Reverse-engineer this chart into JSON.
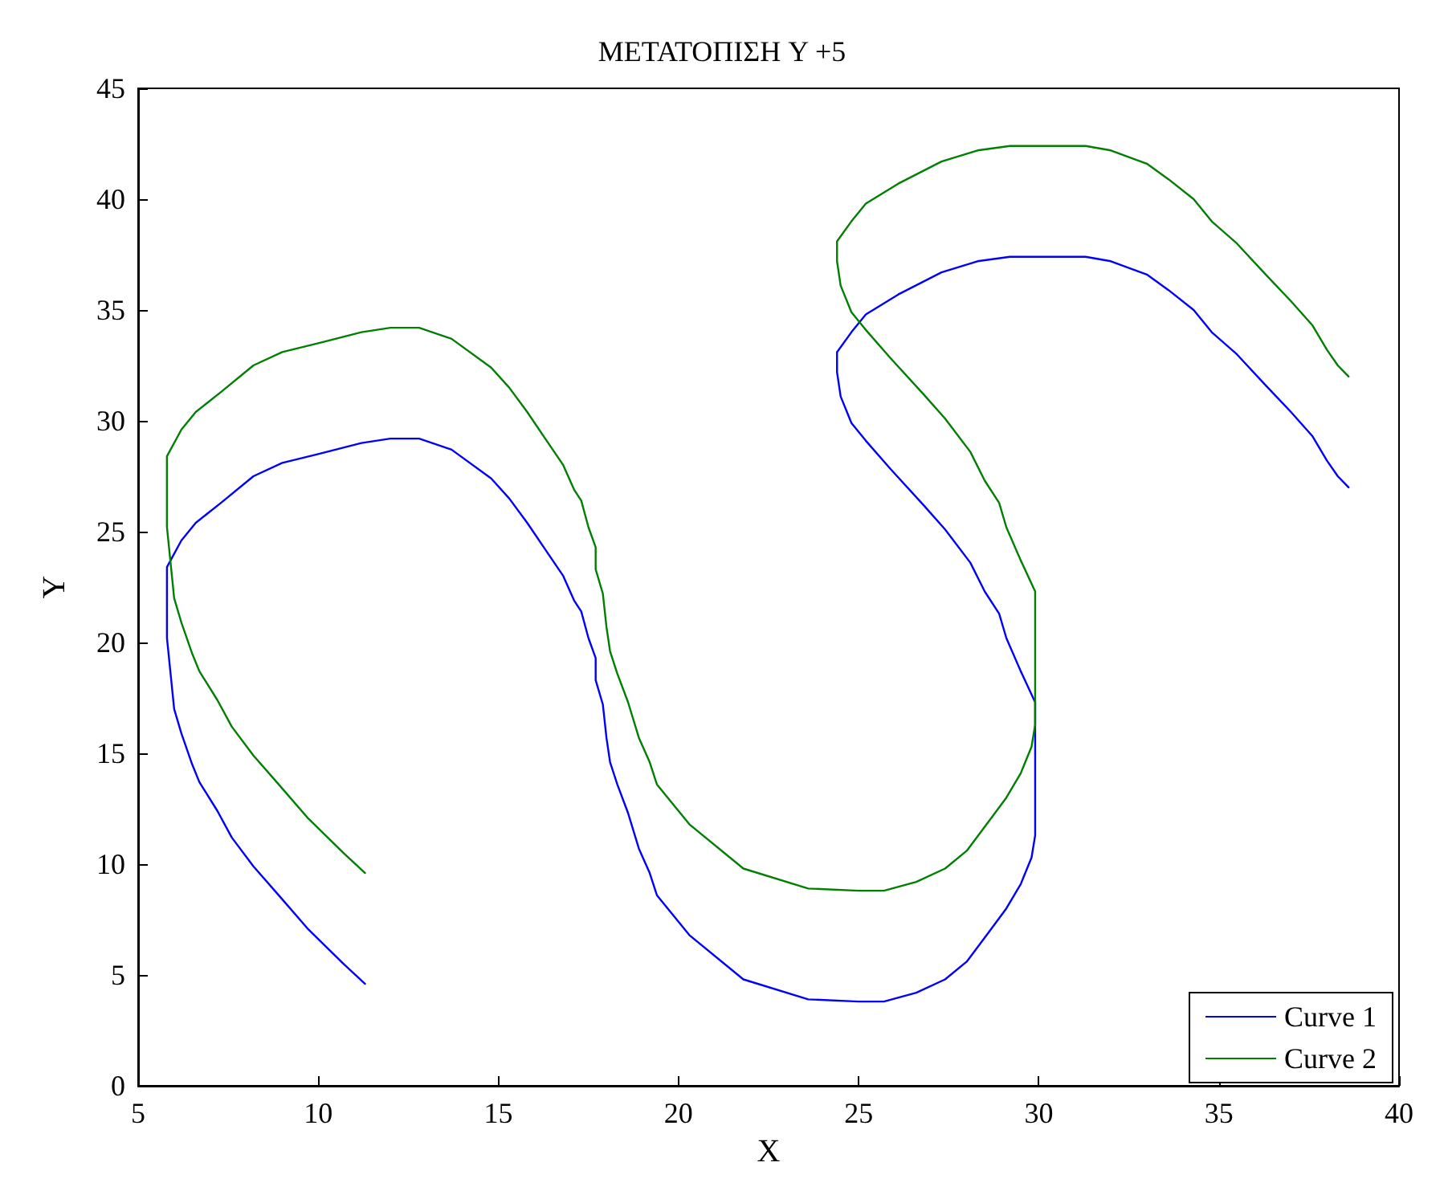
{
  "chart_data": {
    "type": "line",
    "title": "ΜΕΤΑΤΟΠΙΣΗ Y +5",
    "xlabel": "X",
    "ylabel": "Y",
    "xlim": [
      5,
      40
    ],
    "xticks": [
      5,
      10,
      15,
      20,
      25,
      30,
      35,
      40
    ],
    "ylim": [
      0,
      45
    ],
    "yticks": [
      0,
      5,
      10,
      15,
      20,
      25,
      30,
      35,
      40,
      45
    ],
    "grid": false,
    "legend": "bottom right",
    "marker": "none",
    "line_style": "solid",
    "series": [
      {
        "name": "Curve 1",
        "color": "#0000ff",
        "x": [
          11.3,
          10.7,
          9.7,
          8.9,
          8.2,
          7.6,
          7.2,
          6.7,
          6.5,
          6.2,
          6.0,
          5.9,
          5.8,
          5.8,
          5.8,
          6.2,
          6.6,
          7.3,
          8.2,
          9,
          10,
          11.2,
          12,
          12.8,
          13.7,
          14.8,
          15.3,
          15.8,
          16.3,
          16.8,
          17.1,
          17.3,
          17.5,
          17.7,
          17.7,
          17.9,
          18.0,
          18.1,
          18.3,
          18.6,
          18.9,
          19.2,
          19.4,
          20.3,
          21.8,
          23.6,
          25.0,
          25.7,
          26.6,
          27.4,
          28.0,
          28.6,
          29.1,
          29.5,
          29.8,
          29.9,
          29.9,
          29.9,
          29.9,
          29.9,
          29.5,
          29.1,
          28.9,
          28.5,
          28.1,
          27.4,
          26.8,
          25.9,
          25.2,
          24.8,
          24.5,
          24.4,
          24.4,
          24.8,
          25.2,
          26.1,
          27.3,
          28.3,
          29.2,
          31.3,
          32.0,
          33.0,
          33.6,
          34.3,
          34.8,
          35.5,
          36.3,
          37.0,
          37.6,
          38.0,
          38.3,
          38.6
        ],
        "values": [
          4.6,
          5.5,
          7.1,
          8.6,
          9.9,
          11.2,
          12.4,
          13.7,
          14.5,
          15.9,
          17,
          18.6,
          20.2,
          22,
          23.4,
          24.6,
          25.4,
          26.3,
          27.5,
          28.1,
          28.5,
          29,
          29.2,
          29.2,
          28.7,
          27.4,
          26.5,
          25.4,
          24.2,
          23,
          21.9,
          21.4,
          20.2,
          19.3,
          18.3,
          17.2,
          15.7,
          14.6,
          13.6,
          12.3,
          10.7,
          9.6,
          8.6,
          6.8,
          4.8,
          3.9,
          3.8,
          3.8,
          4.2,
          4.8,
          5.6,
          6.9,
          8.0,
          9.1,
          10.3,
          11.3,
          12.4,
          14,
          16,
          17.3,
          18.7,
          20.2,
          21.3,
          22.3,
          23.6,
          25.1,
          26.2,
          27.8,
          29.1,
          29.9,
          31.1,
          32.2,
          33.1,
          34,
          34.8,
          35.7,
          36.7,
          37.2,
          37.4,
          37.4,
          37.2,
          36.6,
          35.9,
          35.0,
          34.0,
          33.0,
          31.6,
          30.4,
          29.3,
          28.2,
          27.5,
          27.0
        ]
      },
      {
        "name": "Curve 2",
        "color": "#008000",
        "x": [
          11.3,
          10.7,
          9.7,
          8.9,
          8.2,
          7.6,
          7.2,
          6.7,
          6.5,
          6.2,
          6.0,
          5.9,
          5.8,
          5.8,
          5.8,
          6.2,
          6.6,
          7.3,
          8.2,
          9,
          10,
          11.2,
          12,
          12.8,
          13.7,
          14.8,
          15.3,
          15.8,
          16.3,
          16.8,
          17.1,
          17.3,
          17.5,
          17.7,
          17.7,
          17.9,
          18.0,
          18.1,
          18.3,
          18.6,
          18.9,
          19.2,
          19.4,
          20.3,
          21.8,
          23.6,
          25.0,
          25.7,
          26.6,
          27.4,
          28.0,
          28.6,
          29.1,
          29.5,
          29.8,
          29.9,
          29.9,
          29.9,
          29.9,
          29.9,
          29.5,
          29.1,
          28.9,
          28.5,
          28.1,
          27.4,
          26.8,
          25.9,
          25.2,
          24.8,
          24.5,
          24.4,
          24.4,
          24.8,
          25.2,
          26.1,
          27.3,
          28.3,
          29.2,
          31.3,
          32.0,
          33.0,
          33.6,
          34.3,
          34.8,
          35.5,
          36.3,
          37.0,
          37.6,
          38.0,
          38.3,
          38.6
        ],
        "values": [
          9.6,
          10.5,
          12.1,
          13.6,
          14.9,
          16.2,
          17.4,
          18.7,
          19.5,
          20.9,
          22,
          23.6,
          25.2,
          27,
          28.4,
          29.6,
          30.4,
          31.3,
          32.5,
          33.1,
          33.5,
          34,
          34.2,
          34.2,
          33.7,
          32.4,
          31.5,
          30.4,
          29.2,
          28,
          26.9,
          26.4,
          25.2,
          24.3,
          23.3,
          22.2,
          20.7,
          19.6,
          18.6,
          17.3,
          15.7,
          14.6,
          13.6,
          11.8,
          9.8,
          8.9,
          8.8,
          8.8,
          9.2,
          9.8,
          10.6,
          11.9,
          13.0,
          14.1,
          15.3,
          16.3,
          17.4,
          19,
          21,
          22.3,
          23.7,
          25.2,
          26.3,
          27.3,
          28.6,
          30.1,
          31.2,
          32.8,
          34.1,
          34.9,
          36.1,
          37.2,
          38.1,
          39,
          39.8,
          40.7,
          41.7,
          42.2,
          42.4,
          42.4,
          42.2,
          41.6,
          40.9,
          40.0,
          39.0,
          38.0,
          36.6,
          35.4,
          34.3,
          33.2,
          32.5,
          32.0
        ]
      }
    ]
  }
}
